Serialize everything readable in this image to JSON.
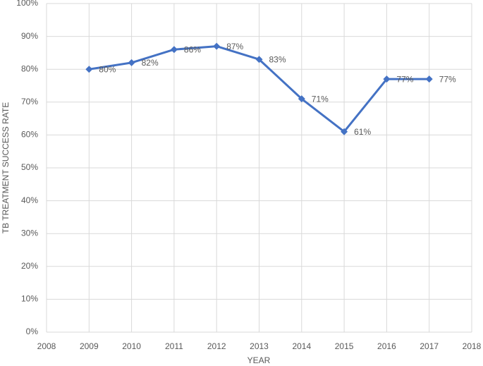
{
  "chart_data": {
    "type": "line",
    "x_label": "YEAR",
    "y_label": "TB TREATMENT SUCCESS RATE",
    "x": [
      2009,
      2010,
      2011,
      2012,
      2013,
      2014,
      2015,
      2016,
      2017
    ],
    "series": [
      {
        "color": "#4472c4",
        "values": [
          80,
          82,
          86,
          87,
          83,
          71,
          61,
          77,
          77
        ],
        "value_labels": [
          "80%",
          "82%",
          "86%",
          "87%",
          "83%",
          "71%",
          "61%",
          "77%",
          "77%"
        ]
      }
    ],
    "xlim": [
      2008,
      2018
    ],
    "xticks": [
      2008,
      2009,
      2010,
      2011,
      2012,
      2013,
      2014,
      2015,
      2016,
      2017,
      2018
    ],
    "ylim": [
      0,
      100
    ],
    "yticks": [
      {
        "value": 0,
        "label": "0%"
      },
      {
        "value": 10,
        "label": "10%"
      },
      {
        "value": 20,
        "label": "20%"
      },
      {
        "value": 30,
        "label": "30%"
      },
      {
        "value": 40,
        "label": "40%"
      },
      {
        "value": 50,
        "label": "50%"
      },
      {
        "value": 60,
        "label": "60%"
      },
      {
        "value": 70,
        "label": "70%"
      },
      {
        "value": 80,
        "label": "80%"
      },
      {
        "value": 90,
        "label": "90%"
      },
      {
        "value": 100,
        "label": "100%"
      }
    ],
    "grid": true
  }
}
